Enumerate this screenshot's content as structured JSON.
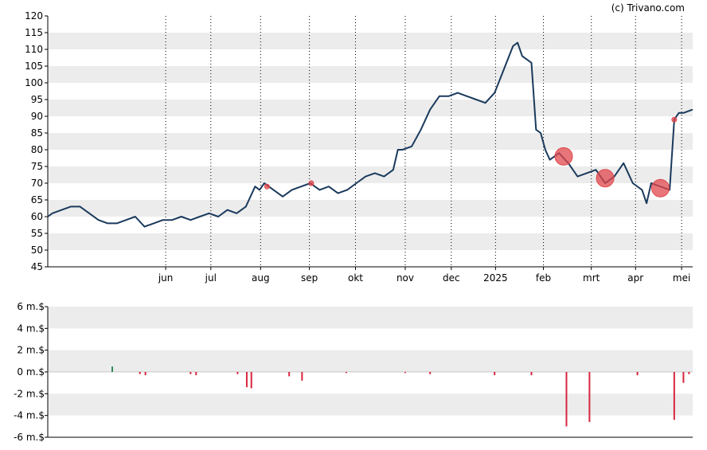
{
  "credit": "(c) Trivano.com",
  "colors": {
    "price_line": "#1a3a5c",
    "band": "#ececec",
    "marker": "#e0474c",
    "bar_positive": "#2e8b57",
    "bar_negative": "#d7263d"
  },
  "chart_data": [
    {
      "type": "line",
      "title": "",
      "ylim": [
        45,
        120
      ],
      "yticks": [
        120,
        115,
        110,
        105,
        100,
        95,
        90,
        85,
        80,
        75,
        70,
        65,
        60,
        55,
        50,
        45
      ],
      "month_labels": [
        "jun",
        "jul",
        "aug",
        "sep",
        "okt",
        "nov",
        "dec",
        "2025",
        "feb",
        "mrt",
        "apr",
        "mei"
      ],
      "month_ticks": [
        12.8,
        17.7,
        23.1,
        28.4,
        33.4,
        38.8,
        43.8,
        48.6,
        53.8,
        59.0,
        63.8,
        68.8
      ],
      "x_range": [
        0,
        70
      ],
      "grid": true,
      "series": [
        {
          "x": [
            0,
            0.5,
            1.5,
            2.5,
            3.5,
            4.5,
            5.5,
            6.5,
            7.5,
            8.5,
            9.5,
            10.5,
            11.5,
            12.5,
            13.5,
            14.5,
            15.5,
            16.5,
            17.5,
            18.5,
            19.5,
            20.5,
            21.5,
            22.5,
            23.0,
            23.5,
            24.0,
            24.5,
            25.5,
            26.5,
            27.5,
            28.5,
            29.5,
            30.5,
            31.5,
            32.5,
            33.5,
            34.5,
            35.5,
            36.5,
            37.5,
            38.0,
            38.5,
            39.5,
            40.5,
            41.5,
            42.5,
            43.5,
            44.5,
            45.5,
            46.5,
            47.5,
            48.5,
            49.5,
            50.5,
            51.0,
            51.5,
            52.5,
            53.0,
            53.5,
            54.0,
            54.5,
            55.5,
            56.5,
            57.5,
            58.5,
            59.5,
            60.5,
            61.5,
            62.5,
            63.5,
            64.5,
            65.0,
            65.5,
            66.5,
            67.5,
            68.0,
            68.5,
            69.0,
            70.0
          ],
          "y": [
            60,
            61,
            62,
            63,
            63,
            61,
            59,
            58,
            58,
            59,
            60,
            57,
            58,
            59,
            59,
            60,
            59,
            60,
            61,
            60,
            62,
            61,
            63,
            69,
            68,
            70,
            69,
            68,
            66,
            68,
            69,
            70,
            68,
            69,
            67,
            68,
            70,
            72,
            73,
            72,
            74,
            80,
            80,
            81,
            86,
            92,
            96,
            96,
            97,
            96,
            95,
            94,
            97,
            104,
            111,
            112,
            108,
            106,
            86,
            85,
            80,
            77,
            79,
            76,
            72,
            73,
            74,
            70,
            72,
            76,
            70,
            68,
            64,
            70,
            69,
            68,
            89,
            91,
            91,
            92
          ]
        }
      ],
      "markers": [
        {
          "x": 23.8,
          "y": 69,
          "size": "small"
        },
        {
          "x": 28.6,
          "y": 70,
          "size": "small"
        },
        {
          "x": 56.0,
          "y": 78,
          "size": "large"
        },
        {
          "x": 60.5,
          "y": 71.5,
          "size": "large"
        },
        {
          "x": 66.5,
          "y": 68.5,
          "size": "large"
        },
        {
          "x": 68.0,
          "y": 89,
          "size": "small"
        }
      ]
    },
    {
      "type": "bar",
      "title": "",
      "ylim": [
        -6,
        6
      ],
      "yticks": [
        "6 m.$",
        "4 m.$",
        "2 m.$",
        "0 m.$",
        "-2 m.$",
        "-4 m.$",
        "-6 m.$"
      ],
      "ytick_values": [
        6,
        4,
        2,
        0,
        -2,
        -4,
        -6
      ],
      "x_range": [
        0,
        70
      ],
      "grid": true,
      "bars": [
        {
          "x": 7.0,
          "value": 0.5
        },
        {
          "x": 10.0,
          "value": -0.2
        },
        {
          "x": 10.6,
          "value": -0.3
        },
        {
          "x": 15.5,
          "value": -0.2
        },
        {
          "x": 16.1,
          "value": -0.3
        },
        {
          "x": 20.6,
          "value": -0.2
        },
        {
          "x": 21.6,
          "value": -1.4
        },
        {
          "x": 22.1,
          "value": -1.5
        },
        {
          "x": 26.2,
          "value": -0.4
        },
        {
          "x": 27.6,
          "value": -0.8
        },
        {
          "x": 32.4,
          "value": -0.1
        },
        {
          "x": 38.8,
          "value": -0.1
        },
        {
          "x": 41.5,
          "value": -0.2
        },
        {
          "x": 48.5,
          "value": -0.3
        },
        {
          "x": 52.5,
          "value": -0.3
        },
        {
          "x": 56.3,
          "value": -5.0
        },
        {
          "x": 58.8,
          "value": -4.6
        },
        {
          "x": 64.0,
          "value": -0.3
        },
        {
          "x": 68.0,
          "value": -4.4
        },
        {
          "x": 69.0,
          "value": -1.0
        },
        {
          "x": 69.6,
          "value": -0.2
        }
      ]
    }
  ]
}
